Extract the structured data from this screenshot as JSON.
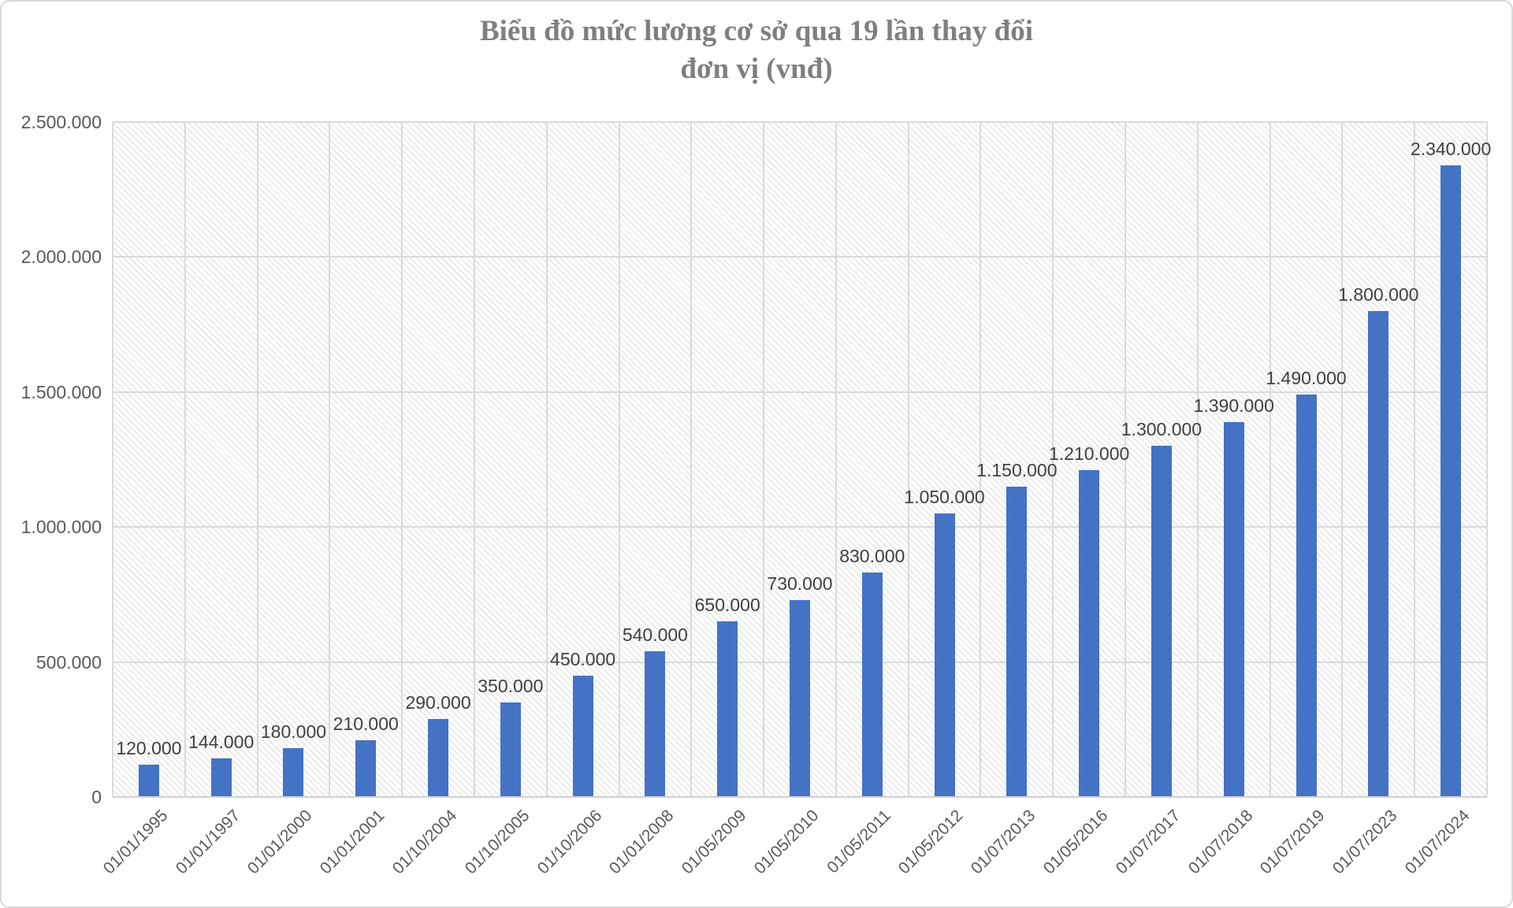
{
  "title": {
    "line1": "Biểu đồ mức lương cơ sở qua 19 lần thay đổi",
    "line2": "đơn vị (vnđ)"
  },
  "chart_data": {
    "type": "bar",
    "title": "Biểu đồ mức lương cơ sở qua 19 lần thay đổi",
    "subtitle": "đơn vị (vnđ)",
    "categories": [
      "01/01/1995",
      "01/01/1997",
      "01/01/2000",
      "01/01/2001",
      "01/10/2004",
      "01/10/2005",
      "01/10/2006",
      "01/01/2008",
      "01/05/2009",
      "01/05/2010",
      "01/05/2011",
      "01/05/2012",
      "01/07/2013",
      "01/05/2016",
      "01/07/2017",
      "01/07/2018",
      "01/07/2019",
      "01/07/2023",
      "01/07/2024"
    ],
    "values": [
      120000,
      144000,
      180000,
      210000,
      290000,
      350000,
      450000,
      540000,
      650000,
      730000,
      830000,
      1050000,
      1150000,
      1210000,
      1300000,
      1390000,
      1490000,
      1800000,
      2340000
    ],
    "data_labels": [
      "120.000",
      "144.000",
      "180.000",
      "210.000",
      "290.000",
      "350.000",
      "450.000",
      "540.000",
      "650.000",
      "730.000",
      "830.000",
      "1.050.000",
      "1.150.000",
      "1.210.000",
      "1.300.000",
      "1.390.000",
      "1.490.000",
      "1.800.000",
      "2.340.000"
    ],
    "y_tick_labels": [
      "0",
      "500.000",
      "1.000.000",
      "1.500.000",
      "2.000.000",
      "2.500.000"
    ],
    "y_tick_values": [
      0,
      500000,
      1000000,
      1500000,
      2000000,
      2500000
    ],
    "ylim": [
      0,
      2500000
    ],
    "xlabel": "",
    "ylabel": "",
    "grid": true,
    "legend": "none",
    "bar_color": "#4472C4",
    "gridline_color": "#dadada",
    "plot_hatch": "light-downward-diagonal",
    "label_color": "#404040",
    "axis_text_color": "#595959",
    "title_color": "#7f7f7f"
  }
}
